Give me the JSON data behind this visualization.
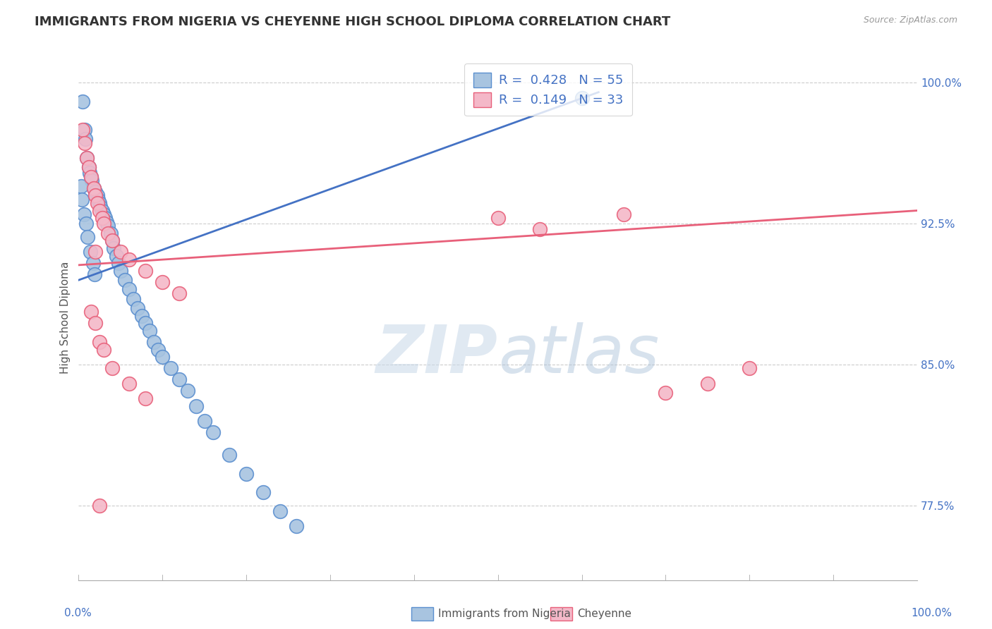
{
  "title": "IMMIGRANTS FROM NIGERIA VS CHEYENNE HIGH SCHOOL DIPLOMA CORRELATION CHART",
  "source_text": "Source: ZipAtlas.com",
  "ylabel": "High School Diploma",
  "xlim": [
    0.0,
    1.0
  ],
  "ylim": [
    0.735,
    1.015
  ],
  "ytick_labels": [
    "77.5%",
    "85.0%",
    "92.5%",
    "100.0%"
  ],
  "ytick_positions": [
    0.775,
    0.85,
    0.925,
    1.0
  ],
  "xtick_left_label": "0.0%",
  "xtick_right_label": "100.0%",
  "legend_label_blue": "Immigrants from Nigeria",
  "legend_label_pink": "Cheyenne",
  "blue_fill": "#a8c4e0",
  "blue_edge": "#5b8fcf",
  "pink_fill": "#f4b8c8",
  "pink_edge": "#e8607a",
  "blue_line_color": "#4472c4",
  "pink_line_color": "#e8607a",
  "R_blue": 0.428,
  "N_blue": 55,
  "R_pink": 0.149,
  "N_pink": 33,
  "watermark_zip": "ZIP",
  "watermark_atlas": "atlas",
  "background_color": "#ffffff",
  "title_fontsize": 13,
  "axis_label_fontsize": 11,
  "tick_fontsize": 11,
  "legend_fontsize": 13,
  "blue_x": [
    0.005,
    0.007,
    0.008,
    0.01,
    0.012,
    0.013,
    0.015,
    0.016,
    0.018,
    0.02,
    0.022,
    0.023,
    0.025,
    0.026,
    0.028,
    0.03,
    0.032,
    0.033,
    0.035,
    0.038,
    0.04,
    0.042,
    0.045,
    0.048,
    0.05,
    0.055,
    0.06,
    0.065,
    0.07,
    0.075,
    0.08,
    0.085,
    0.09,
    0.095,
    0.1,
    0.11,
    0.12,
    0.13,
    0.14,
    0.15,
    0.16,
    0.18,
    0.2,
    0.22,
    0.24,
    0.26,
    0.003,
    0.004,
    0.006,
    0.009,
    0.011,
    0.014,
    0.017,
    0.019,
    0.6
  ],
  "blue_y": [
    0.99,
    0.975,
    0.97,
    0.96,
    0.955,
    0.952,
    0.95,
    0.948,
    0.944,
    0.942,
    0.94,
    0.938,
    0.936,
    0.934,
    0.932,
    0.93,
    0.928,
    0.926,
    0.924,
    0.92,
    0.916,
    0.912,
    0.908,
    0.904,
    0.9,
    0.895,
    0.89,
    0.885,
    0.88,
    0.876,
    0.872,
    0.868,
    0.862,
    0.858,
    0.854,
    0.848,
    0.842,
    0.836,
    0.828,
    0.82,
    0.814,
    0.802,
    0.792,
    0.782,
    0.772,
    0.764,
    0.945,
    0.938,
    0.93,
    0.925,
    0.918,
    0.91,
    0.904,
    0.898,
    0.992
  ],
  "pink_x": [
    0.005,
    0.007,
    0.01,
    0.012,
    0.015,
    0.018,
    0.02,
    0.022,
    0.025,
    0.028,
    0.03,
    0.035,
    0.04,
    0.05,
    0.06,
    0.08,
    0.1,
    0.12,
    0.015,
    0.02,
    0.025,
    0.03,
    0.04,
    0.06,
    0.08,
    0.5,
    0.55,
    0.65,
    0.7,
    0.75,
    0.8,
    0.02,
    0.025
  ],
  "pink_y": [
    0.975,
    0.968,
    0.96,
    0.955,
    0.95,
    0.944,
    0.94,
    0.936,
    0.932,
    0.928,
    0.925,
    0.92,
    0.916,
    0.91,
    0.906,
    0.9,
    0.894,
    0.888,
    0.878,
    0.872,
    0.862,
    0.858,
    0.848,
    0.84,
    0.832,
    0.928,
    0.922,
    0.93,
    0.835,
    0.84,
    0.848,
    0.91,
    0.775
  ],
  "blue_trend_x": [
    0.0,
    0.62
  ],
  "blue_trend_y": [
    0.895,
    0.995
  ],
  "pink_trend_x": [
    0.0,
    1.0
  ],
  "pink_trend_y": [
    0.903,
    0.932
  ]
}
